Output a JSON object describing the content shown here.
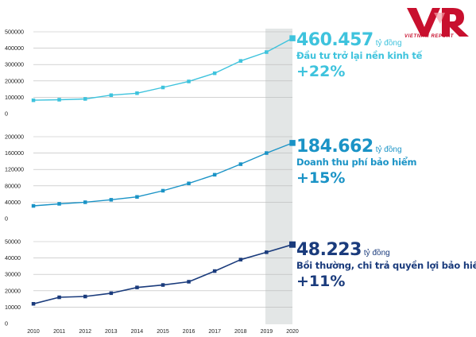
{
  "brand": {
    "logo_text": "VNR",
    "name": "VIETNAM REPORT",
    "color": "#c8102e"
  },
  "colors": {
    "panel1": "#3ec3dd",
    "panel2": "#1a93c6",
    "panel3": "#1a3b7c",
    "highlight": "#e3e6e6",
    "axis_text": "#222222"
  },
  "chart_data": [
    {
      "type": "line",
      "x": [
        "2010",
        "2011",
        "2012",
        "2013",
        "2014",
        "2015",
        "2016",
        "2017",
        "2018",
        "2019",
        "2020"
      ],
      "values": [
        82000,
        85000,
        90000,
        113000,
        125000,
        160000,
        197000,
        247000,
        322000,
        376000,
        460457
      ],
      "ylim": [
        0,
        500000
      ],
      "yticks": [
        "0",
        "100000",
        "200000",
        "300000",
        "400000",
        "500000"
      ],
      "callout": {
        "value": "460.457",
        "unit": "tỷ đồng",
        "label": "Đầu tư trở lại nền kinh tế",
        "change": "+22%"
      }
    },
    {
      "type": "line",
      "x": [
        "2010",
        "2011",
        "2012",
        "2013",
        "2014",
        "2015",
        "2016",
        "2017",
        "2018",
        "2019",
        "2020"
      ],
      "values": [
        31000,
        36000,
        40000,
        46000,
        53000,
        68000,
        86000,
        107000,
        133000,
        160000,
        184662
      ],
      "ylim": [
        0,
        200000
      ],
      "yticks": [
        "0",
        "40000",
        "80000",
        "120000",
        "160000",
        "200000"
      ],
      "callout": {
        "value": "184.662",
        "unit": "tỷ đồng",
        "label": "Doanh thu phí bảo hiểm",
        "change": "+15%"
      }
    },
    {
      "type": "line",
      "x": [
        "2010",
        "2011",
        "2012",
        "2013",
        "2014",
        "2015",
        "2016",
        "2017",
        "2018",
        "2019",
        "2020"
      ],
      "values": [
        12000,
        16000,
        16500,
        18500,
        22000,
        23500,
        25500,
        32000,
        39000,
        43500,
        48223
      ],
      "ylim": [
        0,
        50000
      ],
      "yticks": [
        "0",
        "10000",
        "20000",
        "30000",
        "40000",
        "50000"
      ],
      "callout": {
        "value": "48.223",
        "unit": "tỷ đồng",
        "label": "Bồi thường, chi trả quyền lợi bảo hiểm",
        "change": "+11%"
      }
    }
  ]
}
